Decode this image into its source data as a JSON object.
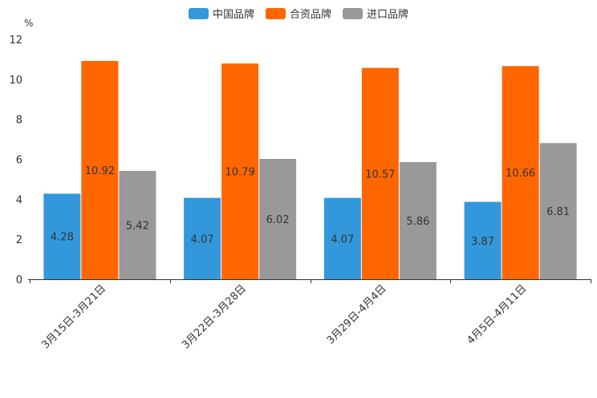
{
  "chart_data": {
    "type": "bar",
    "unit": "%",
    "categories": [
      "3月15日-3月21日",
      "3月22日-3月28日",
      "3月29日-4月4日",
      "4月5日-4月11日"
    ],
    "series": [
      {
        "name": "中国品牌",
        "color": "#3398DB",
        "values": [
          4.28,
          4.07,
          4.07,
          3.87
        ]
      },
      {
        "name": "合资品牌",
        "color": "#FF6600",
        "values": [
          10.92,
          10.79,
          10.57,
          10.66
        ]
      },
      {
        "name": "进口品牌",
        "color": "#999999",
        "values": [
          5.42,
          6.02,
          5.86,
          6.81
        ]
      }
    ],
    "ylim": [
      0,
      12
    ],
    "yticks": [
      0,
      2,
      4,
      6,
      8,
      10,
      12
    ],
    "legend_position": "top-center"
  }
}
